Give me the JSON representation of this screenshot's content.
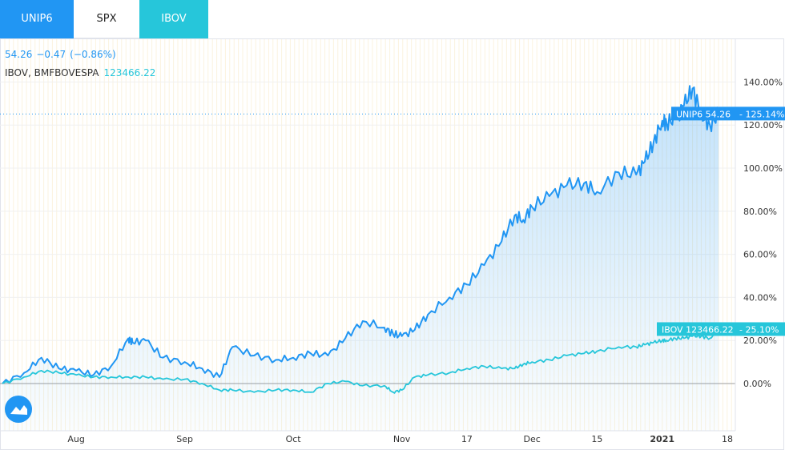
{
  "tabs": [
    {
      "label": "UNIP6"
    },
    {
      "label": "SPX"
    },
    {
      "label": "IBOV"
    }
  ],
  "legend": {
    "unip6_price": "54.26",
    "unip6_change": "−0.47",
    "unip6_pct": "(−0.86%)",
    "ibov_name": "IBOV, BMFBOVESPA",
    "ibov_value": "123466.22"
  },
  "badges": {
    "unip6": "UNIP6 54.26",
    "unip6_pct": "125.14%",
    "ibov": "IBOV 123466.22",
    "ibov_pct": "25.10%"
  },
  "colors": {
    "unip6": "#2196f3",
    "ibov": "#26c6da"
  },
  "chart_data": {
    "type": "line",
    "y_ticks": [
      "140.00%",
      "120.00%",
      "100.00%",
      "80.00%",
      "60.00%",
      "40.00%",
      "20.00%",
      "0.00%"
    ],
    "x_ticks": [
      "Aug",
      "Sep",
      "Oct",
      "Nov",
      "17",
      "Dec",
      "15",
      "2021",
      "18"
    ],
    "ylim": [
      -20,
      155
    ],
    "x_range": [
      0,
      167
    ],
    "x_tick_positions": [
      17,
      42,
      67,
      92,
      107,
      122,
      137,
      152,
      167
    ],
    "series": [
      {
        "name": "UNIP6",
        "x": [
          0,
          5,
          9,
          13,
          17,
          21,
          25,
          29,
          30,
          33,
          37,
          42,
          46,
          50,
          53,
          58,
          63,
          67,
          71,
          75,
          79,
          83,
          88,
          90,
          92,
          95,
          98,
          103,
          107,
          111,
          115,
          118,
          120,
          122,
          126,
          130,
          134,
          137,
          142,
          146,
          148,
          150,
          152,
          153,
          155,
          157,
          159,
          161,
          163,
          165
        ],
        "values": [
          0,
          5,
          12,
          7,
          6,
          4,
          8,
          21,
          19,
          20,
          12,
          10,
          7,
          3,
          17,
          13,
          11,
          12,
          14,
          13,
          21,
          29,
          26,
          23,
          22,
          25,
          32,
          40,
          46,
          55,
          66,
          78,
          76,
          82,
          87,
          92,
          93,
          89,
          98,
          97,
          103,
          112,
          122,
          121,
          123,
          129,
          137,
          125,
          120,
          125.14
        ]
      },
      {
        "name": "IBOV",
        "x": [
          0,
          5,
          9,
          13,
          17,
          21,
          25,
          29,
          33,
          37,
          42,
          46,
          50,
          53,
          58,
          63,
          67,
          71,
          75,
          79,
          83,
          88,
          90,
          92,
          95,
          98,
          103,
          107,
          111,
          115,
          118,
          120,
          122,
          126,
          130,
          134,
          137,
          142,
          146,
          148,
          150,
          152,
          153,
          155,
          157,
          159,
          161,
          163,
          165
        ],
        "values": [
          0,
          3,
          6,
          5,
          4,
          3,
          3,
          3,
          3,
          2,
          2,
          0,
          -3,
          -3,
          -4,
          -3,
          -3,
          -4,
          0,
          1,
          -1,
          -1,
          -4,
          -3,
          3,
          4,
          5,
          7,
          8,
          7,
          7,
          9,
          10,
          11,
          13,
          14,
          15,
          17,
          17,
          18,
          19,
          20,
          20,
          21,
          21,
          22,
          22,
          21,
          25.1
        ]
      }
    ]
  }
}
